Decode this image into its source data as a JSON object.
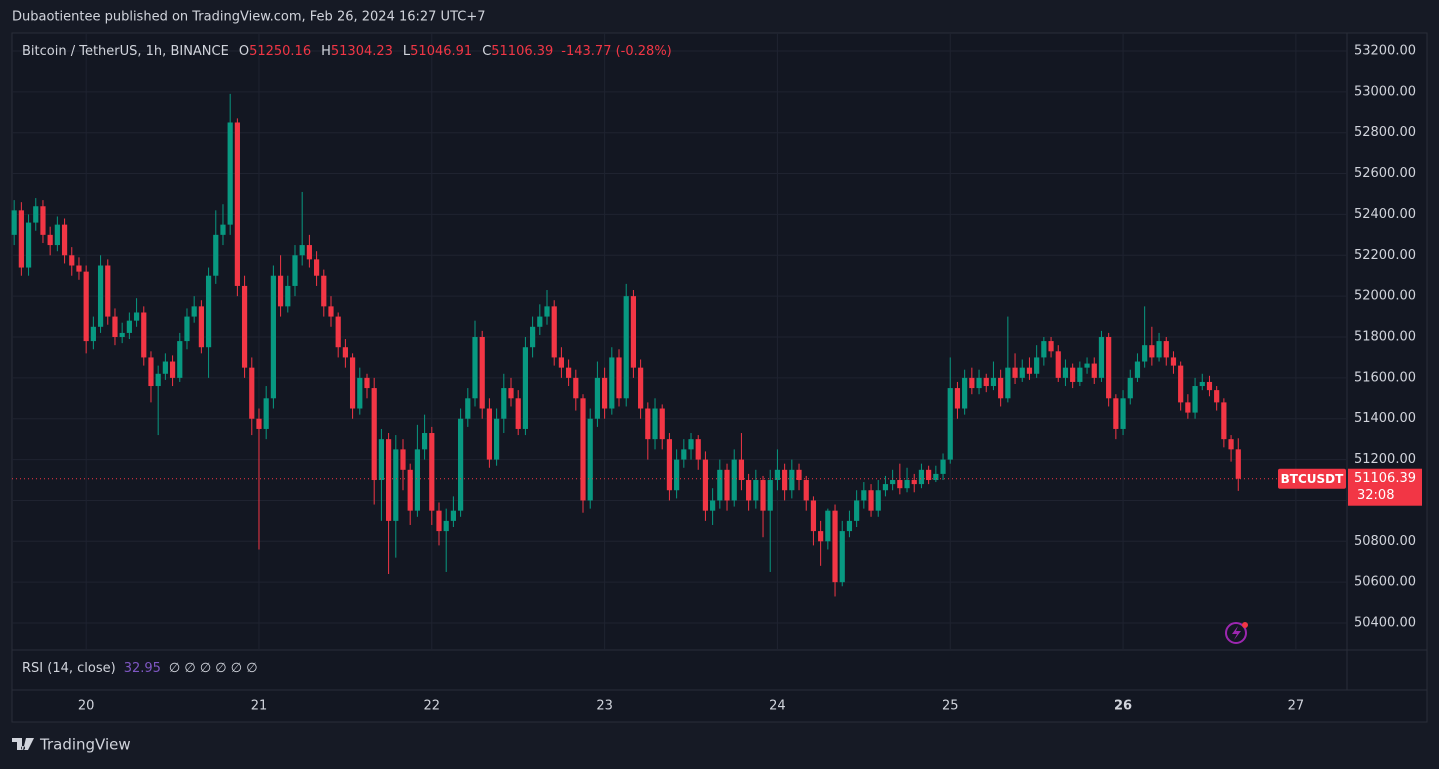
{
  "header": {
    "published": "Dubaotientee published on TradingView.com, Feb 26, 2024 16:27 UTC+7"
  },
  "chart_data": {
    "type": "candlestick",
    "symbol": "Bitcoin / TetherUS, 1h, BINANCE",
    "ohlc_legend": [
      "O",
      "H",
      "L",
      "C"
    ],
    "change": "-143.77 (-0.28%)",
    "up_color": "#089981",
    "down_color": "#f23645",
    "candles": [
      [
        52300,
        52470,
        52250,
        52420
      ],
      [
        52420,
        52460,
        52100,
        52140
      ],
      [
        52140,
        52400,
        52100,
        52360
      ],
      [
        52360,
        52480,
        52320,
        52440
      ],
      [
        52440,
        52470,
        52260,
        52300
      ],
      [
        52300,
        52340,
        52200,
        52250
      ],
      [
        52250,
        52390,
        52220,
        52350
      ],
      [
        52350,
        52380,
        52160,
        52200
      ],
      [
        52200,
        52240,
        52100,
        52150
      ],
      [
        52150,
        52190,
        52080,
        52120
      ],
      [
        52120,
        52150,
        51720,
        51780
      ],
      [
        51780,
        51900,
        51740,
        51850
      ],
      [
        51850,
        52200,
        51820,
        52150
      ],
      [
        52150,
        52180,
        51860,
        51900
      ],
      [
        51900,
        51940,
        51760,
        51800
      ],
      [
        51800,
        51870,
        51770,
        51820
      ],
      [
        51820,
        51920,
        51790,
        51880
      ],
      [
        51880,
        51990,
        51850,
        51920
      ],
      [
        51920,
        51950,
        51660,
        51700
      ],
      [
        51700,
        51730,
        51480,
        51560
      ],
      [
        51560,
        51660,
        51320,
        51620
      ],
      [
        51620,
        51720,
        51590,
        51680
      ],
      [
        51680,
        51710,
        51560,
        51600
      ],
      [
        51600,
        51820,
        51580,
        51780
      ],
      [
        51780,
        51940,
        51740,
        51900
      ],
      [
        51900,
        52000,
        51870,
        51950
      ],
      [
        51950,
        51980,
        51720,
        51750
      ],
      [
        51750,
        52140,
        51600,
        52100
      ],
      [
        52100,
        52420,
        52060,
        52300
      ],
      [
        52300,
        52450,
        52250,
        52350
      ],
      [
        52350,
        52990,
        52300,
        52850
      ],
      [
        52850,
        52870,
        52000,
        52050
      ],
      [
        52050,
        52100,
        51600,
        51650
      ],
      [
        51650,
        51700,
        51320,
        51400
      ],
      [
        51400,
        51450,
        50760,
        51350
      ],
      [
        51350,
        51560,
        51300,
        51500
      ],
      [
        51500,
        52150,
        51450,
        52100
      ],
      [
        52100,
        52200,
        51900,
        51950
      ],
      [
        51950,
        52100,
        51920,
        52050
      ],
      [
        52050,
        52250,
        52000,
        52200
      ],
      [
        52200,
        52510,
        52150,
        52250
      ],
      [
        52250,
        52300,
        52140,
        52180
      ],
      [
        52180,
        52220,
        52050,
        52100
      ],
      [
        52100,
        52130,
        51900,
        51950
      ],
      [
        51950,
        52000,
        51850,
        51900
      ],
      [
        51900,
        51920,
        51700,
        51750
      ],
      [
        51750,
        51790,
        51650,
        51700
      ],
      [
        51700,
        51720,
        51400,
        51450
      ],
      [
        51450,
        51650,
        51420,
        51600
      ],
      [
        51600,
        51620,
        51500,
        51550
      ],
      [
        51550,
        51600,
        50980,
        51100
      ],
      [
        51100,
        51350,
        50900,
        51300
      ],
      [
        51300,
        51330,
        50640,
        50900
      ],
      [
        50900,
        51320,
        50720,
        51250
      ],
      [
        51250,
        51300,
        51050,
        51150
      ],
      [
        51150,
        51180,
        50880,
        50950
      ],
      [
        50950,
        51370,
        50920,
        51250
      ],
      [
        51250,
        51420,
        51200,
        51330
      ],
      [
        51330,
        51360,
        50880,
        50950
      ],
      [
        50950,
        50990,
        50780,
        50850
      ],
      [
        50850,
        50960,
        50650,
        50900
      ],
      [
        50900,
        51020,
        50870,
        50950
      ],
      [
        50950,
        51450,
        50920,
        51400
      ],
      [
        51400,
        51550,
        51360,
        51500
      ],
      [
        51500,
        51880,
        51460,
        51800
      ],
      [
        51800,
        51830,
        51400,
        51450
      ],
      [
        51450,
        51500,
        51160,
        51200
      ],
      [
        51200,
        51450,
        51170,
        51400
      ],
      [
        51400,
        51620,
        51330,
        51550
      ],
      [
        51550,
        51600,
        51460,
        51500
      ],
      [
        51500,
        51540,
        51320,
        51350
      ],
      [
        51350,
        51800,
        51320,
        51750
      ],
      [
        51750,
        51900,
        51700,
        51850
      ],
      [
        51850,
        51960,
        51810,
        51900
      ],
      [
        51900,
        52030,
        51860,
        51950
      ],
      [
        51950,
        51980,
        51660,
        51700
      ],
      [
        51700,
        51750,
        51600,
        51650
      ],
      [
        51650,
        51690,
        51560,
        51600
      ],
      [
        51600,
        51640,
        51440,
        51500
      ],
      [
        51500,
        51520,
        50940,
        51000
      ],
      [
        51000,
        51450,
        50960,
        51400
      ],
      [
        51400,
        51680,
        51360,
        51600
      ],
      [
        51600,
        51650,
        51400,
        51450
      ],
      [
        51450,
        51750,
        51420,
        51700
      ],
      [
        51700,
        51740,
        51460,
        51500
      ],
      [
        51500,
        52060,
        51460,
        52000
      ],
      [
        52000,
        52030,
        51600,
        51650
      ],
      [
        51650,
        51690,
        51400,
        51450
      ],
      [
        51450,
        51480,
        51200,
        51300
      ],
      [
        51300,
        51500,
        51250,
        51450
      ],
      [
        51450,
        51470,
        51250,
        51300
      ],
      [
        51300,
        51330,
        51000,
        51050
      ],
      [
        51050,
        51250,
        51010,
        51200
      ],
      [
        51200,
        51300,
        51160,
        51250
      ],
      [
        51250,
        51330,
        51200,
        51300
      ],
      [
        51300,
        51320,
        51150,
        51200
      ],
      [
        51200,
        51240,
        50900,
        50950
      ],
      [
        50950,
        51060,
        50880,
        51000
      ],
      [
        51000,
        51200,
        50960,
        51150
      ],
      [
        51150,
        51180,
        50950,
        51000
      ],
      [
        51000,
        51250,
        50970,
        51200
      ],
      [
        51200,
        51330,
        51050,
        51100
      ],
      [
        51100,
        51130,
        50950,
        51000
      ],
      [
        51000,
        51150,
        50960,
        51100
      ],
      [
        51100,
        51120,
        50820,
        50950
      ],
      [
        50950,
        51150,
        50650,
        51100
      ],
      [
        51100,
        51250,
        51050,
        51150
      ],
      [
        51150,
        51180,
        51000,
        51050
      ],
      [
        51050,
        51200,
        51010,
        51150
      ],
      [
        51150,
        51180,
        51050,
        51100
      ],
      [
        51100,
        51120,
        50950,
        51000
      ],
      [
        51000,
        51020,
        50780,
        50850
      ],
      [
        50850,
        50900,
        50680,
        50800
      ],
      [
        50800,
        50960,
        50760,
        50950
      ],
      [
        50950,
        50980,
        50530,
        50600
      ],
      [
        50600,
        50900,
        50580,
        50850
      ],
      [
        50850,
        50950,
        50820,
        50900
      ],
      [
        50900,
        51050,
        50870,
        51000
      ],
      [
        51000,
        51090,
        50960,
        51050
      ],
      [
        51050,
        51080,
        50920,
        50950
      ],
      [
        50950,
        51100,
        50920,
        51050
      ],
      [
        51050,
        51120,
        51020,
        51080
      ],
      [
        51080,
        51150,
        51050,
        51100
      ],
      [
        51100,
        51180,
        51030,
        51060
      ],
      [
        51060,
        51160,
        51040,
        51100
      ],
      [
        51100,
        51130,
        51040,
        51080
      ],
      [
        51080,
        51180,
        51060,
        51150
      ],
      [
        51150,
        51170,
        51080,
        51100
      ],
      [
        51100,
        51170,
        51090,
        51130
      ],
      [
        51130,
        51230,
        51100,
        51200
      ],
      [
        51200,
        51700,
        51180,
        51550
      ],
      [
        51550,
        51580,
        51400,
        51450
      ],
      [
        51450,
        51640,
        51420,
        51600
      ],
      [
        51600,
        51650,
        51520,
        51550
      ],
      [
        51550,
        51640,
        51520,
        51600
      ],
      [
        51600,
        51620,
        51530,
        51560
      ],
      [
        51560,
        51680,
        51540,
        51600
      ],
      [
        51600,
        51640,
        51460,
        51500
      ],
      [
        51500,
        51900,
        51480,
        51650
      ],
      [
        51650,
        51720,
        51570,
        51600
      ],
      [
        51600,
        51690,
        51580,
        51650
      ],
      [
        51650,
        51700,
        51590,
        51620
      ],
      [
        51620,
        51760,
        51600,
        51700
      ],
      [
        51700,
        51800,
        51660,
        51780
      ],
      [
        51780,
        51800,
        51700,
        51730
      ],
      [
        51730,
        51760,
        51580,
        51600
      ],
      [
        51600,
        51690,
        51560,
        51650
      ],
      [
        51650,
        51670,
        51550,
        51580
      ],
      [
        51580,
        51680,
        51560,
        51650
      ],
      [
        51650,
        51700,
        51620,
        51670
      ],
      [
        51670,
        51700,
        51570,
        51600
      ],
      [
        51600,
        51830,
        51580,
        51800
      ],
      [
        51800,
        51820,
        51460,
        51500
      ],
      [
        51500,
        51520,
        51300,
        51350
      ],
      [
        51350,
        51540,
        51320,
        51500
      ],
      [
        51500,
        51640,
        51470,
        51600
      ],
      [
        51600,
        51720,
        51580,
        51680
      ],
      [
        51680,
        51950,
        51650,
        51760
      ],
      [
        51760,
        51850,
        51660,
        51700
      ],
      [
        51700,
        51820,
        51680,
        51780
      ],
      [
        51780,
        51800,
        51660,
        51700
      ],
      [
        51700,
        51730,
        51620,
        51660
      ],
      [
        51660,
        51680,
        51440,
        51480
      ],
      [
        51480,
        51520,
        51400,
        51430
      ],
      [
        51430,
        51600,
        51400,
        51560
      ],
      [
        51560,
        51620,
        51540,
        51580
      ],
      [
        51580,
        51610,
        51510,
        51540
      ],
      [
        51540,
        51560,
        51440,
        51480
      ],
      [
        51480,
        51500,
        51260,
        51300
      ],
      [
        51300,
        51320,
        51190,
        51250.16
      ],
      [
        51250.16,
        51304.23,
        51046.91,
        51106.39
      ]
    ],
    "ylim": [
      50268,
      53288
    ],
    "yticks": [
      {
        "value": 50400,
        "label": "50400.00"
      },
      {
        "value": 50600,
        "label": "50600.00"
      },
      {
        "value": 50800,
        "label": "50800.00"
      },
      {
        "value": 51000,
        "label": "51000.00"
      },
      {
        "value": 51200,
        "label": "51200.00"
      },
      {
        "value": 51400,
        "label": "51400.00"
      },
      {
        "value": 51600,
        "label": "51600.00"
      },
      {
        "value": 51800,
        "label": "51800.00"
      },
      {
        "value": 52000,
        "label": "52000.00"
      },
      {
        "value": 52200,
        "label": "52200.00"
      },
      {
        "value": 52400,
        "label": "52400.00"
      },
      {
        "value": 52600,
        "label": "52600.00"
      },
      {
        "value": 52800,
        "label": "52800.00"
      },
      {
        "value": 53000,
        "label": "53000.00"
      },
      {
        "value": 53200,
        "label": "53200.00"
      }
    ],
    "xlim": [
      -0.3,
      185.1
    ],
    "xticks": [
      {
        "value": 10,
        "label": "20"
      },
      {
        "value": 34,
        "label": "21"
      },
      {
        "value": 58,
        "label": "22"
      },
      {
        "value": 82,
        "label": "23"
      },
      {
        "value": 106,
        "label": "24"
      },
      {
        "value": 130,
        "label": "25"
      },
      {
        "value": 154,
        "label": "26"
      },
      {
        "value": 178,
        "label": "27"
      }
    ],
    "grid": true,
    "last_price": {
      "symbol": "BTCUSDT",
      "countdown": "32:08"
    },
    "indicator": {
      "name": "RSI (14, close)",
      "value": 32.95,
      "placeholders": "∅ ∅ ∅ ∅ ∅ ∅"
    }
  },
  "footer": {
    "brand": "TradingView"
  }
}
